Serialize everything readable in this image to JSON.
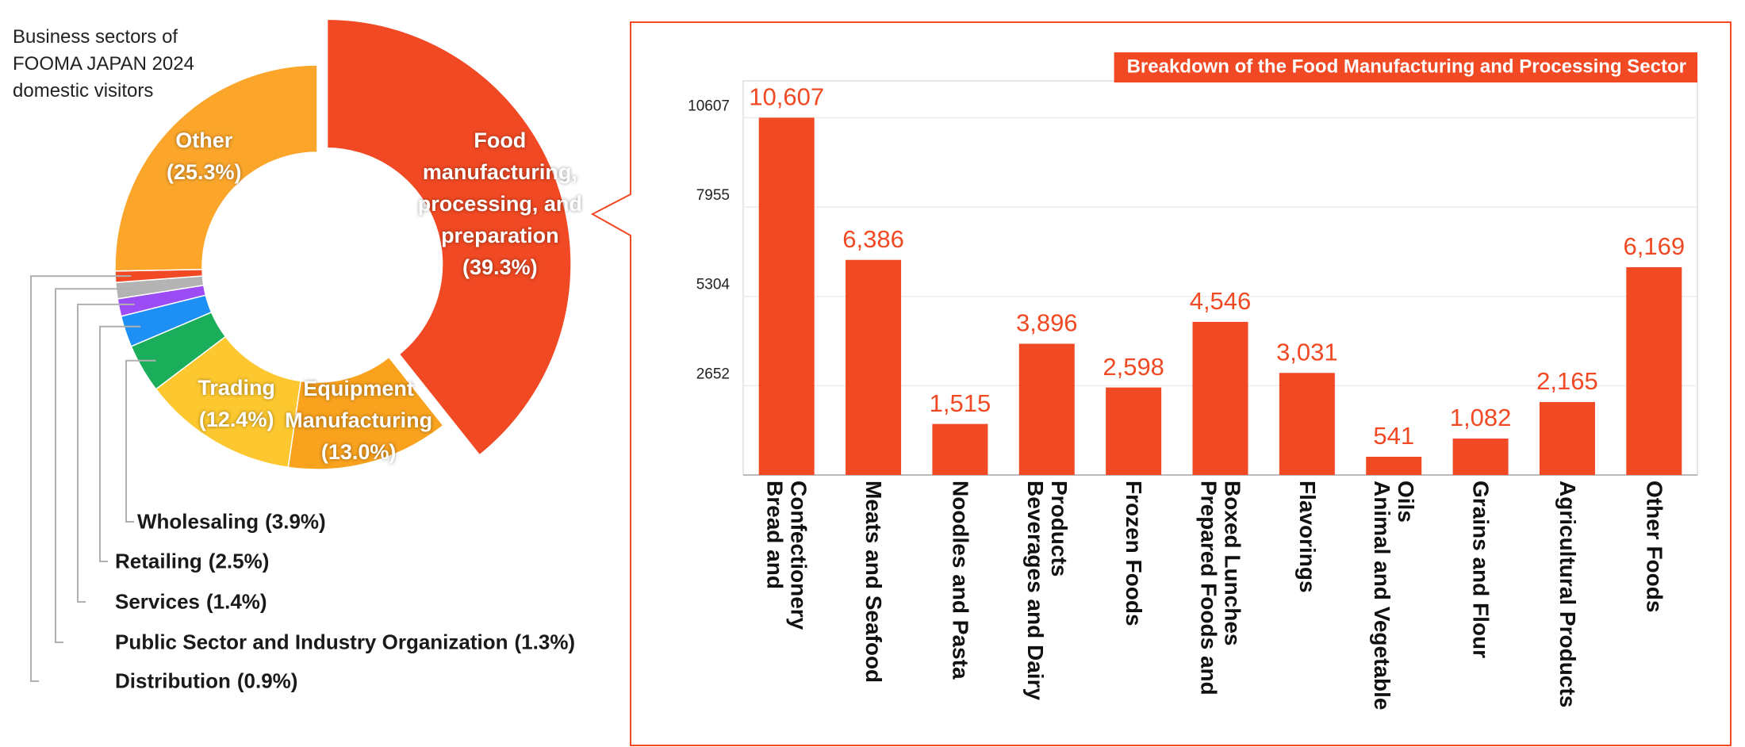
{
  "chart_data": [
    {
      "type": "pie",
      "title": "Business sectors of FOOMA JAPAN 2024 domestic visitors",
      "categories": [
        "Food manufacturing, processing, and preparation",
        "Equipment Manufacturing",
        "Trading",
        "Wholesaling",
        "Retailing",
        "Services",
        "Public Sector and Industry Organization",
        "Distribution",
        "Other"
      ],
      "values": [
        39.3,
        13.0,
        12.4,
        3.9,
        2.5,
        1.4,
        1.3,
        0.9,
        25.3
      ],
      "value_labels": [
        "(39.3%)",
        "(13.0%)",
        "(12.4%)",
        "(3.9%)",
        "(2.5%)",
        "(1.4%)",
        "(1.3%)",
        "(0.9%)",
        "(25.3%)"
      ],
      "colors": [
        "#f04923",
        "#f8a21e",
        "#fdc82f",
        "#1aad5a",
        "#1e90f5",
        "#9b4cf5",
        "#b3b3b3",
        "#f04923",
        "#fba62b"
      ]
    },
    {
      "type": "bar",
      "title": "Breakdown of the Food Manufacturing and Processing Sector",
      "categories": [
        "Bread and Confectionery",
        "Meats and Seafood",
        "Noodles and Pasta",
        "Beverages and Dairy Products",
        "Frozen Foods",
        "Prepared Foods and Boxed Lunches",
        "Flavorings",
        "Animal and Vegetable Oils",
        "Grains and Flour",
        "Agricultural Products",
        "Other Foods"
      ],
      "values": [
        10607,
        6386,
        1515,
        3896,
        2598,
        4546,
        3031,
        541,
        1082,
        2165,
        6169
      ],
      "value_labels": [
        "10,607",
        "6,386",
        "1,515",
        "3,896",
        "2,598",
        "4,546",
        "3,031",
        "541",
        "1,082",
        "2,165",
        "6,169"
      ],
      "color": "#f04923",
      "ylim": [
        0,
        11700
      ],
      "yticks": [
        2652,
        5304,
        7955,
        10607
      ],
      "grid": true
    }
  ]
}
